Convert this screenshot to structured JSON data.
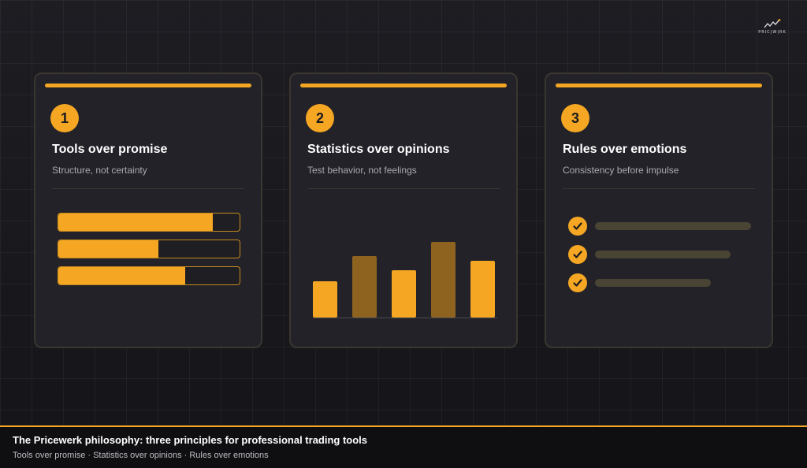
{
  "logo": {
    "text": "PRIC|W|RK",
    "accent": "#f5a623"
  },
  "colors": {
    "accent": "#f5a623",
    "accent_dark": "#8e6320",
    "muted_line": "#4a4435"
  },
  "cards": [
    {
      "number": "1",
      "title": "Tools over promise",
      "subtitle": "Structure, not certainty",
      "progress": [
        0.85,
        0.55,
        0.7
      ]
    },
    {
      "number": "2",
      "title": "Statistics over opinions",
      "subtitle": "Test behavior, not feelings",
      "bars": [
        {
          "value": 46,
          "highlight": true
        },
        {
          "value": 78,
          "highlight": false
        },
        {
          "value": 60,
          "highlight": true
        },
        {
          "value": 96,
          "highlight": false
        },
        {
          "value": 72,
          "highlight": true
        }
      ]
    },
    {
      "number": "3",
      "title": "Rules over emotions",
      "subtitle": "Consistency before impulse",
      "checklist_lengths": [
        1.0,
        0.87,
        0.74
      ]
    }
  ],
  "footer": {
    "title": "The Pricewerk philosophy: three principles for professional trading tools",
    "subtitle": "Tools over promise · Statistics over opinions · Rules over emotions"
  }
}
